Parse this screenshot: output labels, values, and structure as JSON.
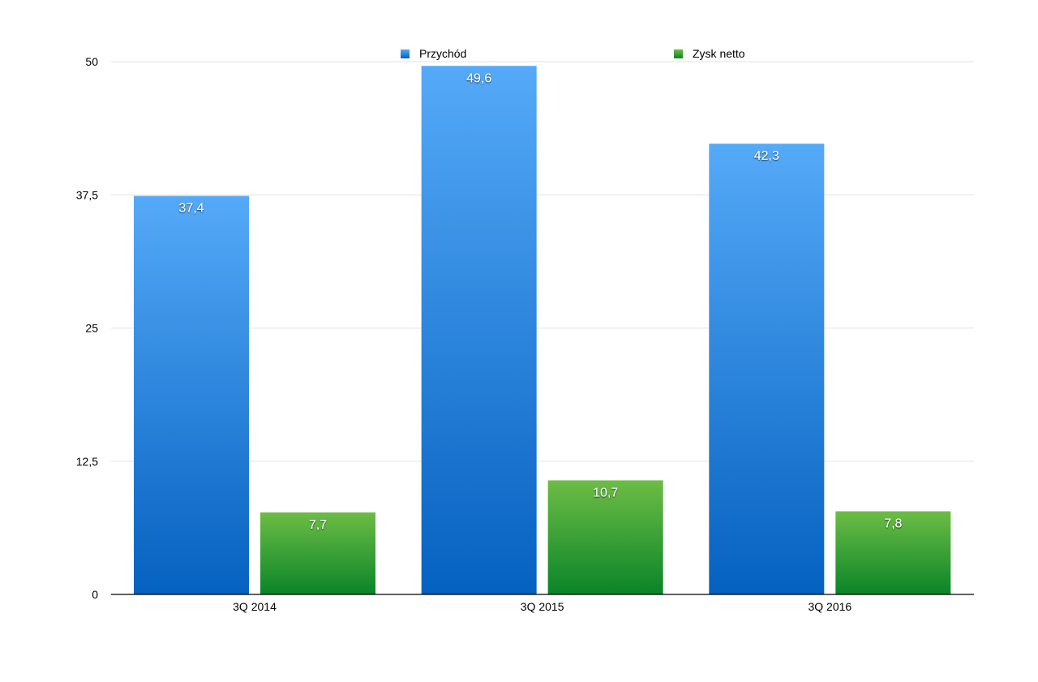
{
  "chart_data": {
    "type": "bar",
    "categories": [
      "3Q 2014",
      "3Q 2015",
      "3Q 2016"
    ],
    "series": [
      {
        "name": "Przychód",
        "values": [
          37.4,
          49.6,
          42.3
        ],
        "data_labels": [
          "37,4",
          "49,6",
          "42,3"
        ],
        "color_top": "#55aaf8",
        "color_bottom": "#0561c0"
      },
      {
        "name": "Zysk netto",
        "values": [
          7.7,
          10.7,
          7.8
        ],
        "data_labels": [
          "7,7",
          "10,7",
          "7,8"
        ],
        "color_top": "#6cbd45",
        "color_bottom": "#0a8428"
      }
    ],
    "ylim": [
      0,
      50
    ],
    "yticks": [
      0,
      12.5,
      25,
      37.5,
      50
    ],
    "ytick_labels": [
      "0",
      "12,5",
      "25",
      "37,5",
      "50"
    ],
    "grid": true,
    "legend_position": "top",
    "title": "",
    "xlabel": "",
    "ylabel": ""
  }
}
